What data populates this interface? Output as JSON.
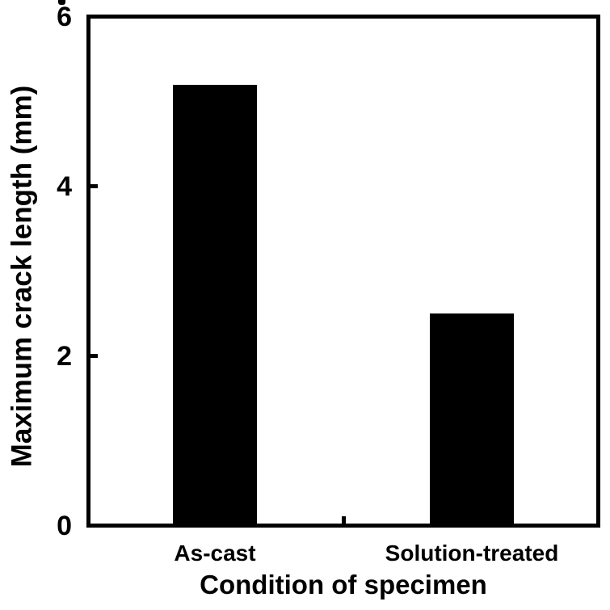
{
  "chart_data": {
    "type": "bar",
    "categories": [
      "As-cast",
      "Solution-treated"
    ],
    "values": [
      5.2,
      2.5
    ],
    "title": "",
    "xlabel": "Condition of specimen",
    "ylabel": "Maximum crack length (mm)",
    "ylim": [
      0,
      6
    ],
    "yticks": [
      0,
      2,
      4,
      6
    ],
    "grid": false,
    "legend": false,
    "bar_color": "#000000",
    "axis_color": "#000000",
    "background_color": "#ffffff",
    "text_color": "#000000"
  }
}
